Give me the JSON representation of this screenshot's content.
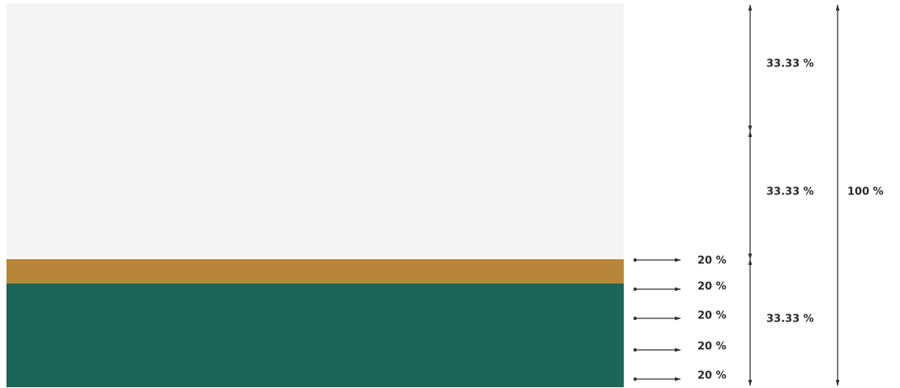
{
  "bands": [
    {
      "name": "light-gray-band",
      "color": "#f5f5f5"
    },
    {
      "name": "gold-band",
      "color": "#b8863a"
    },
    {
      "name": "green-band",
      "color": "#1c6657"
    }
  ],
  "row_markers": [
    "20 %",
    "20 %",
    "20 %",
    "20 %",
    "20 %"
  ],
  "thirds": [
    "33.33 %",
    "33.33 %",
    "33.33 %"
  ],
  "total": "100 %",
  "line_color": "#333333"
}
